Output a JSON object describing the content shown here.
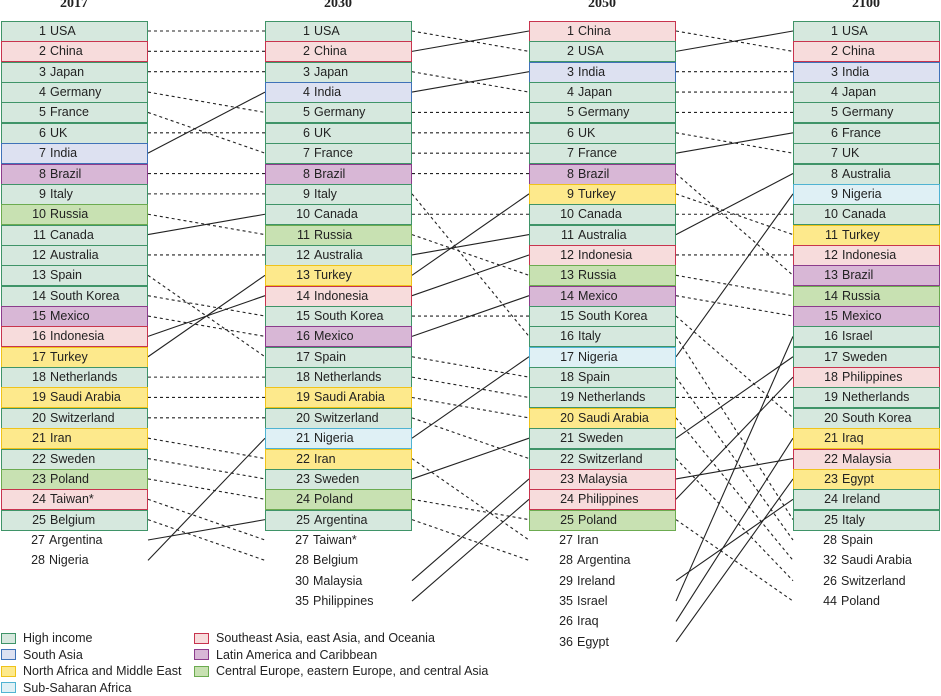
{
  "regions": {
    "hi": {
      "label": "High income",
      "fill": "#d6e8de",
      "border": "#3f9468"
    },
    "sa": {
      "label": "South Asia",
      "fill": "#dde1f1",
      "border": "#3f72b8"
    },
    "nam": {
      "label": "North Africa and Middle East",
      "fill": "#fde98c",
      "border": "#efc31a"
    },
    "ssa": {
      "label": "Sub-Saharan Africa",
      "fill": "#dff0f5",
      "border": "#4fb3d2"
    },
    "sea": {
      "label": "Southeast Asia, east Asia, and Oceania",
      "fill": "#f7dcdc",
      "border": "#c8344e"
    },
    "lac": {
      "label": "Latin America and Caribbean",
      "fill": "#d8b7d6",
      "border": "#8c3c8c"
    },
    "ce": {
      "label": "Central Europe, eastern Europe, and central Asia",
      "fill": "#c8e1b2",
      "border": "#6cab50"
    }
  },
  "legend_order": [
    [
      "hi",
      "sa",
      "nam",
      "ssa"
    ],
    [
      "sea",
      "lac",
      "ce"
    ]
  ],
  "columns": [
    {
      "year": "2017",
      "rows": [
        {
          "rank": "1",
          "name": "USA",
          "region": "hi"
        },
        {
          "rank": "2",
          "name": "China",
          "region": "sea"
        },
        {
          "rank": "3",
          "name": "Japan",
          "region": "hi"
        },
        {
          "rank": "4",
          "name": "Germany",
          "region": "hi"
        },
        {
          "rank": "5",
          "name": "France",
          "region": "hi"
        },
        {
          "rank": "6",
          "name": "UK",
          "region": "hi"
        },
        {
          "rank": "7",
          "name": "India",
          "region": "sa"
        },
        {
          "rank": "8",
          "name": "Brazil",
          "region": "lac"
        },
        {
          "rank": "9",
          "name": "Italy",
          "region": "hi"
        },
        {
          "rank": "10",
          "name": "Russia",
          "region": "ce"
        },
        {
          "rank": "11",
          "name": "Canada",
          "region": "hi"
        },
        {
          "rank": "12",
          "name": "Australia",
          "region": "hi"
        },
        {
          "rank": "13",
          "name": "Spain",
          "region": "hi"
        },
        {
          "rank": "14",
          "name": "South Korea",
          "region": "hi"
        },
        {
          "rank": "15",
          "name": "Mexico",
          "region": "lac"
        },
        {
          "rank": "16",
          "name": "Indonesia",
          "region": "sea"
        },
        {
          "rank": "17",
          "name": "Turkey",
          "region": "nam"
        },
        {
          "rank": "18",
          "name": "Netherlands",
          "region": "hi"
        },
        {
          "rank": "19",
          "name": "Saudi Arabia",
          "region": "nam"
        },
        {
          "rank": "20",
          "name": "Switzerland",
          "region": "hi"
        },
        {
          "rank": "21",
          "name": "Iran",
          "region": "nam"
        },
        {
          "rank": "22",
          "name": "Sweden",
          "region": "hi"
        },
        {
          "rank": "23",
          "name": "Poland",
          "region": "ce"
        },
        {
          "rank": "24",
          "name": "Taiwan*",
          "region": "sea"
        },
        {
          "rank": "25",
          "name": "Belgium",
          "region": "hi"
        }
      ],
      "extras": [
        {
          "rank": "27",
          "name": "Argentina"
        },
        {
          "rank": "28",
          "name": "Nigeria"
        }
      ]
    },
    {
      "year": "2030",
      "rows": [
        {
          "rank": "1",
          "name": "USA",
          "region": "hi"
        },
        {
          "rank": "2",
          "name": "China",
          "region": "sea"
        },
        {
          "rank": "3",
          "name": "Japan",
          "region": "hi"
        },
        {
          "rank": "4",
          "name": "India",
          "region": "sa"
        },
        {
          "rank": "5",
          "name": "Germany",
          "region": "hi"
        },
        {
          "rank": "6",
          "name": "UK",
          "region": "hi"
        },
        {
          "rank": "7",
          "name": "France",
          "region": "hi"
        },
        {
          "rank": "8",
          "name": "Brazil",
          "region": "lac"
        },
        {
          "rank": "9",
          "name": "Italy",
          "region": "hi"
        },
        {
          "rank": "10",
          "name": "Canada",
          "region": "hi"
        },
        {
          "rank": "11",
          "name": "Russia",
          "region": "ce"
        },
        {
          "rank": "12",
          "name": "Australia",
          "region": "hi"
        },
        {
          "rank": "13",
          "name": "Turkey",
          "region": "nam"
        },
        {
          "rank": "14",
          "name": "Indonesia",
          "region": "sea"
        },
        {
          "rank": "15",
          "name": "South Korea",
          "region": "hi"
        },
        {
          "rank": "16",
          "name": "Mexico",
          "region": "lac"
        },
        {
          "rank": "17",
          "name": "Spain",
          "region": "hi"
        },
        {
          "rank": "18",
          "name": "Netherlands",
          "region": "hi"
        },
        {
          "rank": "19",
          "name": "Saudi Arabia",
          "region": "nam"
        },
        {
          "rank": "20",
          "name": "Switzerland",
          "region": "hi"
        },
        {
          "rank": "21",
          "name": "Nigeria",
          "region": "ssa"
        },
        {
          "rank": "22",
          "name": "Iran",
          "region": "nam"
        },
        {
          "rank": "23",
          "name": "Sweden",
          "region": "hi"
        },
        {
          "rank": "24",
          "name": "Poland",
          "region": "ce"
        },
        {
          "rank": "25",
          "name": "Argentina",
          "region": "hi"
        }
      ],
      "extras": [
        {
          "rank": "27",
          "name": "Taiwan*"
        },
        {
          "rank": "28",
          "name": "Belgium"
        },
        {
          "rank": "30",
          "name": "Malaysia"
        },
        {
          "rank": "35",
          "name": "Philippines"
        }
      ]
    },
    {
      "year": "2050",
      "rows": [
        {
          "rank": "1",
          "name": "China",
          "region": "sea"
        },
        {
          "rank": "2",
          "name": "USA",
          "region": "hi"
        },
        {
          "rank": "3",
          "name": "India",
          "region": "sa"
        },
        {
          "rank": "4",
          "name": "Japan",
          "region": "hi"
        },
        {
          "rank": "5",
          "name": "Germany",
          "region": "hi"
        },
        {
          "rank": "6",
          "name": "UK",
          "region": "hi"
        },
        {
          "rank": "7",
          "name": "France",
          "region": "hi"
        },
        {
          "rank": "8",
          "name": "Brazil",
          "region": "lac"
        },
        {
          "rank": "9",
          "name": "Turkey",
          "region": "nam"
        },
        {
          "rank": "10",
          "name": "Canada",
          "region": "hi"
        },
        {
          "rank": "11",
          "name": "Australia",
          "region": "hi"
        },
        {
          "rank": "12",
          "name": "Indonesia",
          "region": "sea"
        },
        {
          "rank": "13",
          "name": "Russia",
          "region": "ce"
        },
        {
          "rank": "14",
          "name": "Mexico",
          "region": "lac"
        },
        {
          "rank": "15",
          "name": "South Korea",
          "region": "hi"
        },
        {
          "rank": "16",
          "name": "Italy",
          "region": "hi"
        },
        {
          "rank": "17",
          "name": "Nigeria",
          "region": "ssa"
        },
        {
          "rank": "18",
          "name": "Spain",
          "region": "hi"
        },
        {
          "rank": "19",
          "name": "Netherlands",
          "region": "hi"
        },
        {
          "rank": "20",
          "name": "Saudi Arabia",
          "region": "nam"
        },
        {
          "rank": "21",
          "name": "Sweden",
          "region": "hi"
        },
        {
          "rank": "22",
          "name": "Switzerland",
          "region": "hi"
        },
        {
          "rank": "23",
          "name": "Malaysia",
          "region": "sea"
        },
        {
          "rank": "24",
          "name": "Philippines",
          "region": "sea"
        },
        {
          "rank": "25",
          "name": "Poland",
          "region": "ce"
        }
      ],
      "extras": [
        {
          "rank": "27",
          "name": "Iran"
        },
        {
          "rank": "28",
          "name": "Argentina"
        },
        {
          "rank": "29",
          "name": "Ireland"
        },
        {
          "rank": "35",
          "name": "Israel"
        },
        {
          "rank": "26",
          "name": "Iraq"
        },
        {
          "rank": "36",
          "name": "Egypt"
        }
      ]
    },
    {
      "year": "2100",
      "rows": [
        {
          "rank": "1",
          "name": "USA",
          "region": "hi"
        },
        {
          "rank": "2",
          "name": "China",
          "region": "sea"
        },
        {
          "rank": "3",
          "name": "India",
          "region": "sa"
        },
        {
          "rank": "4",
          "name": "Japan",
          "region": "hi"
        },
        {
          "rank": "5",
          "name": "Germany",
          "region": "hi"
        },
        {
          "rank": "6",
          "name": "France",
          "region": "hi"
        },
        {
          "rank": "7",
          "name": "UK",
          "region": "hi"
        },
        {
          "rank": "8",
          "name": "Australia",
          "region": "hi"
        },
        {
          "rank": "9",
          "name": "Nigeria",
          "region": "ssa"
        },
        {
          "rank": "10",
          "name": "Canada",
          "region": "hi"
        },
        {
          "rank": "11",
          "name": "Turkey",
          "region": "nam"
        },
        {
          "rank": "12",
          "name": "Indonesia",
          "region": "sea"
        },
        {
          "rank": "13",
          "name": "Brazil",
          "region": "lac"
        },
        {
          "rank": "14",
          "name": "Russia",
          "region": "ce"
        },
        {
          "rank": "15",
          "name": "Mexico",
          "region": "lac"
        },
        {
          "rank": "16",
          "name": "Israel",
          "region": "hi"
        },
        {
          "rank": "17",
          "name": "Sweden",
          "region": "hi"
        },
        {
          "rank": "18",
          "name": "Philippines",
          "region": "sea"
        },
        {
          "rank": "19",
          "name": "Netherlands",
          "region": "hi"
        },
        {
          "rank": "20",
          "name": "South Korea",
          "region": "hi"
        },
        {
          "rank": "21",
          "name": "Iraq",
          "region": "nam"
        },
        {
          "rank": "22",
          "name": "Malaysia",
          "region": "sea"
        },
        {
          "rank": "23",
          "name": "Egypt",
          "region": "nam"
        },
        {
          "rank": "24",
          "name": "Ireland",
          "region": "hi"
        },
        {
          "rank": "25",
          "name": "Italy",
          "region": "hi"
        }
      ],
      "extras": [
        {
          "rank": "28",
          "name": "Spain"
        },
        {
          "rank": "32",
          "name": "Saudi Arabia"
        },
        {
          "rank": "26",
          "name": "Switzerland"
        },
        {
          "rank": "44",
          "name": "Poland"
        }
      ]
    }
  ]
}
